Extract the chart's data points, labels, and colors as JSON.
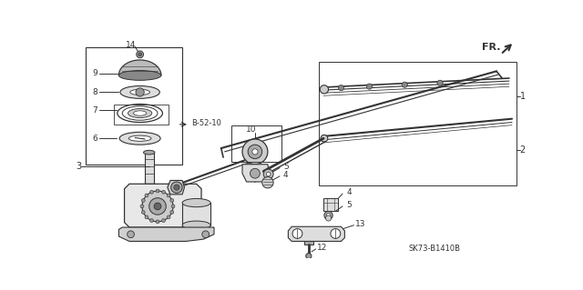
{
  "bg_color": "#ffffff",
  "line_color": "#333333",
  "model_code": "SK73-B1410B",
  "fr_label": "FR.",
  "b_ref": "B-52-10",
  "fig_width": 6.4,
  "fig_height": 3.19,
  "dpi": 100
}
